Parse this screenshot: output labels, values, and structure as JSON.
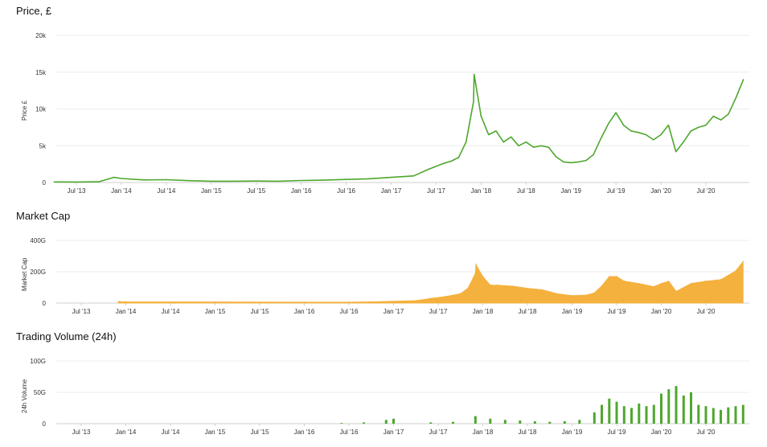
{
  "chart_data": [
    {
      "type": "line",
      "title": "Price, £",
      "ylabel": "Price £",
      "xlabel": "",
      "ylim": [
        0,
        20000
      ],
      "yticks": [
        0,
        5000,
        10000,
        15000,
        20000
      ],
      "ytick_labels": [
        "0",
        "5k",
        "10k",
        "15k",
        "20k"
      ],
      "xticks": [
        "Jul '13",
        "Jan '14",
        "Jul '14",
        "Jan '15",
        "Jul '15",
        "Jan '16",
        "Jul '16",
        "Jan '17",
        "Jul '17",
        "Jan '18",
        "Jul '18",
        "Jan '19",
        "Jul '19",
        "Jan '20",
        "Jul '20"
      ],
      "grid": true,
      "color": "#4ea72e",
      "x": [
        "2013-04",
        "2013-07",
        "2013-10",
        "2013-12",
        "2014-01",
        "2014-04",
        "2014-07",
        "2014-10",
        "2015-01",
        "2015-04",
        "2015-07",
        "2015-10",
        "2016-01",
        "2016-04",
        "2016-07",
        "2016-10",
        "2017-01",
        "2017-04",
        "2017-06",
        "2017-08",
        "2017-09",
        "2017-10",
        "2017-11",
        "2017-12",
        "2017-12-17",
        "2018-01",
        "2018-02",
        "2018-03",
        "2018-04",
        "2018-05",
        "2018-06",
        "2018-07",
        "2018-08",
        "2018-09",
        "2018-10",
        "2018-11",
        "2018-12",
        "2019-01",
        "2019-02",
        "2019-03",
        "2019-04",
        "2019-05",
        "2019-06",
        "2019-07",
        "2019-08",
        "2019-09",
        "2019-10",
        "2019-11",
        "2019-12",
        "2020-01",
        "2020-02",
        "2020-03",
        "2020-04",
        "2020-05",
        "2020-06",
        "2020-07",
        "2020-08",
        "2020-09",
        "2020-10",
        "2020-11",
        "2020-12"
      ],
      "values": [
        80,
        70,
        100,
        700,
        550,
        350,
        380,
        250,
        180,
        170,
        200,
        180,
        270,
        320,
        420,
        500,
        700,
        900,
        1800,
        2600,
        2900,
        3400,
        5500,
        11000,
        14700,
        9000,
        6500,
        7000,
        5500,
        6200,
        5000,
        5500,
        4800,
        5000,
        4800,
        3500,
        2800,
        2700,
        2800,
        3000,
        3800,
        6000,
        8000,
        9500,
        7800,
        7000,
        6800,
        6500,
        5800,
        6500,
        7800,
        4200,
        5500,
        7000,
        7500,
        7800,
        9000,
        8500,
        9300,
        11500,
        14000
      ]
    },
    {
      "type": "area",
      "title": "Market Cap",
      "ylabel": "Market Cap",
      "xlabel": "",
      "ylim": [
        0,
        400
      ],
      "yticks": [
        0,
        200,
        400
      ],
      "ytick_labels": [
        "0",
        "200G",
        "400G"
      ],
      "xticks": [
        "Jul '13",
        "Jan '14",
        "Jul '14",
        "Jan '15",
        "Jul '15",
        "Jan '16",
        "Jul '16",
        "Jan '17",
        "Jul '17",
        "Jan '18",
        "Jul '18",
        "Jan '19",
        "Jul '19",
        "Jan '20",
        "Jul '20"
      ],
      "grid": true,
      "color": "#f5b13d",
      "x": [
        "2013-12",
        "2014-01",
        "2016-07",
        "2016-10",
        "2017-01",
        "2017-04",
        "2017-06",
        "2017-08",
        "2017-10",
        "2017-11",
        "2017-12",
        "2017-12-17",
        "2018-01",
        "2018-02",
        "2018-03",
        "2018-05",
        "2018-07",
        "2018-09",
        "2018-11",
        "2019-01",
        "2019-03",
        "2019-04",
        "2019-05",
        "2019-06",
        "2019-07",
        "2019-08",
        "2019-10",
        "2019-12",
        "2020-01",
        "2020-02",
        "2020-03",
        "2020-05",
        "2020-07",
        "2020-09",
        "2020-11",
        "2020-12"
      ],
      "values": [
        10,
        8,
        6,
        8,
        12,
        16,
        30,
        42,
        60,
        95,
        190,
        248,
        170,
        115,
        115,
        108,
        95,
        85,
        60,
        48,
        52,
        65,
        110,
        170,
        170,
        140,
        125,
        105,
        125,
        140,
        75,
        125,
        140,
        150,
        205,
        265
      ]
    },
    {
      "type": "bar",
      "title": "Trading Volume (24h)",
      "ylabel": "24h Volume",
      "xlabel": "",
      "ylim": [
        0,
        100
      ],
      "yticks": [
        0,
        50,
        100
      ],
      "ytick_labels": [
        "0",
        "50G",
        "100G"
      ],
      "xticks": [
        "Jul '13",
        "Jan '14",
        "Jul '14",
        "Jan '15",
        "Jul '15",
        "Jan '16",
        "Jul '16",
        "Jan '17",
        "Jul '17",
        "Jan '18",
        "Jul '18",
        "Jan '19",
        "Jul '19",
        "Jan '20",
        "Jul '20"
      ],
      "grid": true,
      "color": "#4ea72e",
      "x": [
        "2016-06",
        "2016-09",
        "2016-12",
        "2017-01",
        "2017-06",
        "2017-09",
        "2017-12",
        "2018-02",
        "2018-04",
        "2018-06",
        "2018-08",
        "2018-10",
        "2018-12",
        "2019-02",
        "2019-04",
        "2019-05",
        "2019-06",
        "2019-07",
        "2019-08",
        "2019-09",
        "2019-10",
        "2019-11",
        "2019-12",
        "2020-01",
        "2020-02",
        "2020-03",
        "2020-04",
        "2020-05",
        "2020-06",
        "2020-07",
        "2020-08",
        "2020-09",
        "2020-10",
        "2020-11",
        "2020-12"
      ],
      "values": [
        1,
        2,
        6,
        8,
        2,
        3,
        12,
        8,
        6,
        5,
        4,
        3,
        4,
        6,
        18,
        30,
        40,
        35,
        28,
        25,
        32,
        28,
        30,
        48,
        55,
        60,
        45,
        50,
        30,
        28,
        25,
        22,
        26,
        28,
        30
      ]
    }
  ]
}
